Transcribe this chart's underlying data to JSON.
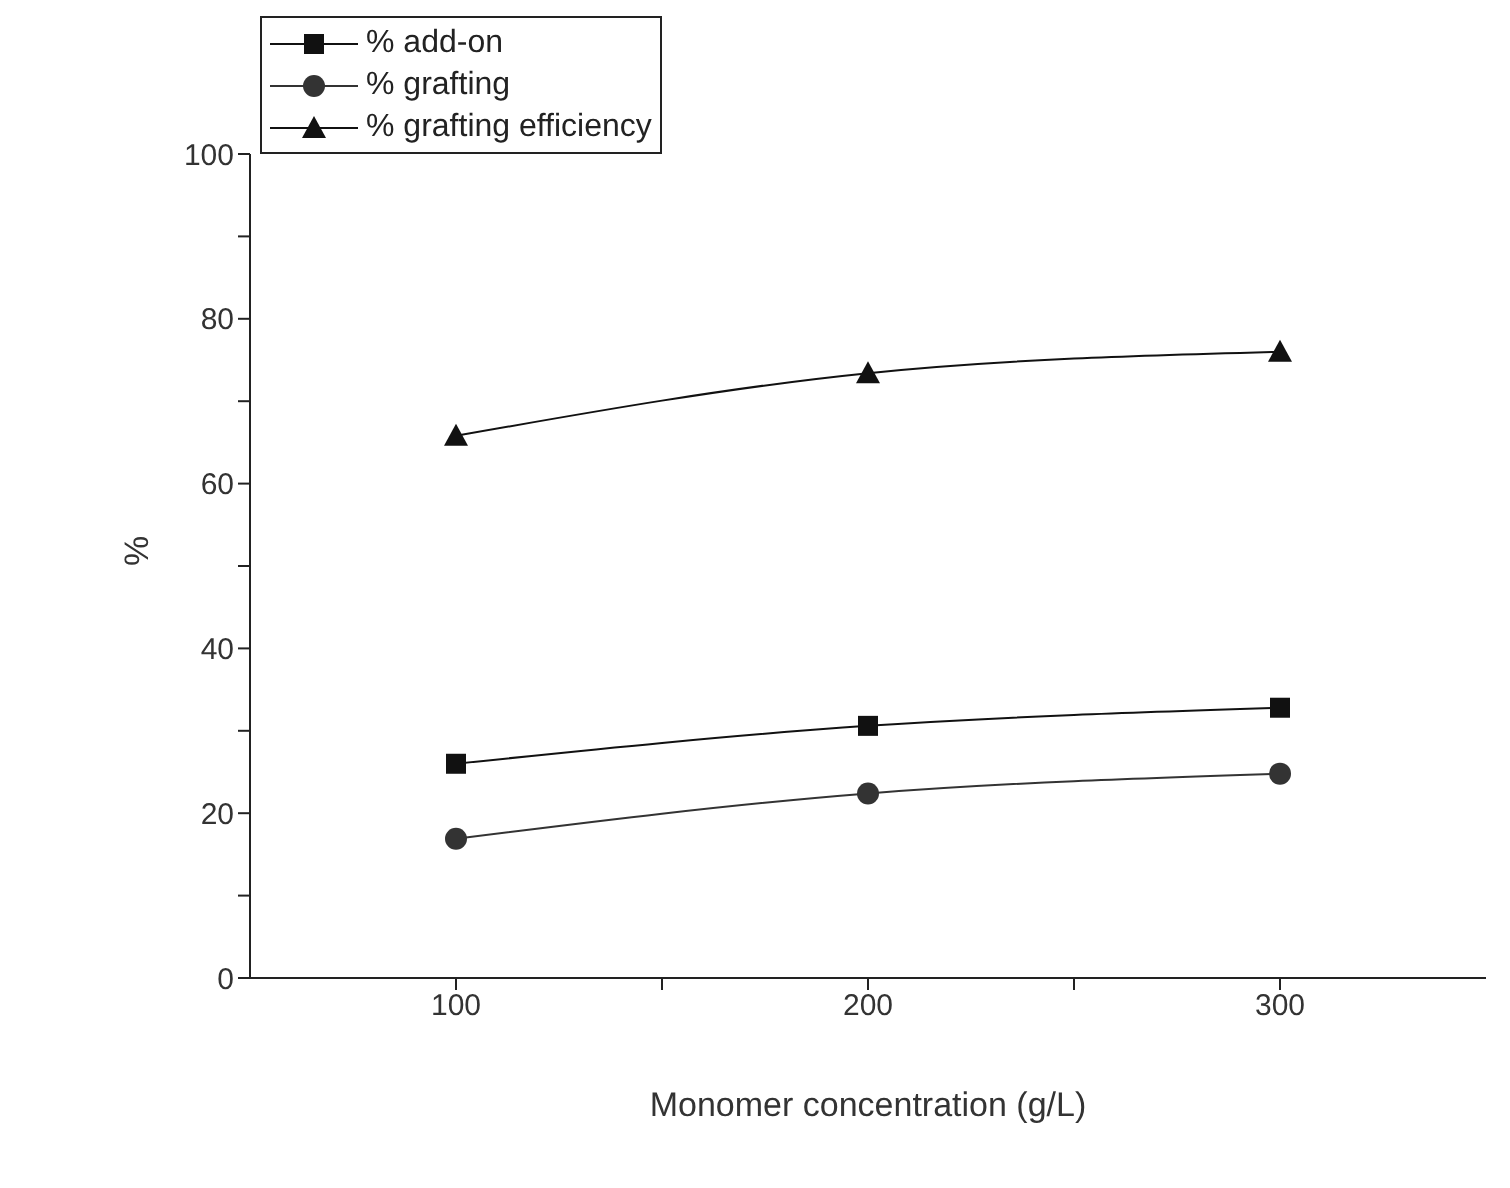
{
  "chart_data": {
    "type": "line",
    "xlabel": "Monomer concentration (g/L)",
    "ylabel": "%",
    "x": [
      100,
      200,
      300
    ],
    "series": [
      {
        "name": "% add-on",
        "color": "#111111",
        "values": [
          26.0,
          30.6,
          32.8
        ],
        "marker": "square"
      },
      {
        "name": "% grafting",
        "color": "#333333",
        "values": [
          16.9,
          22.4,
          24.8
        ],
        "marker": "circle"
      },
      {
        "name": "% grafting efficiency",
        "color": "#111111",
        "values": [
          65.8,
          73.4,
          76.0
        ],
        "marker": "triangle"
      }
    ],
    "xlim": [
      50,
      350
    ],
    "xticks": [
      {
        "value": 150,
        "label": null
      },
      100,
      200,
      {
        "value": 250,
        "label": null
      },
      300
    ],
    "ylim": [
      0,
      100
    ],
    "yticks": [
      0,
      {
        "value": 10,
        "label": null
      },
      20,
      {
        "value": 30,
        "label": null
      },
      40,
      {
        "value": 50,
        "label": null
      },
      60,
      {
        "value": 70,
        "label": null
      },
      80,
      {
        "value": 90,
        "label": null
      },
      100
    ],
    "grid": false,
    "legend": "top left",
    "line_style": "solid"
  }
}
